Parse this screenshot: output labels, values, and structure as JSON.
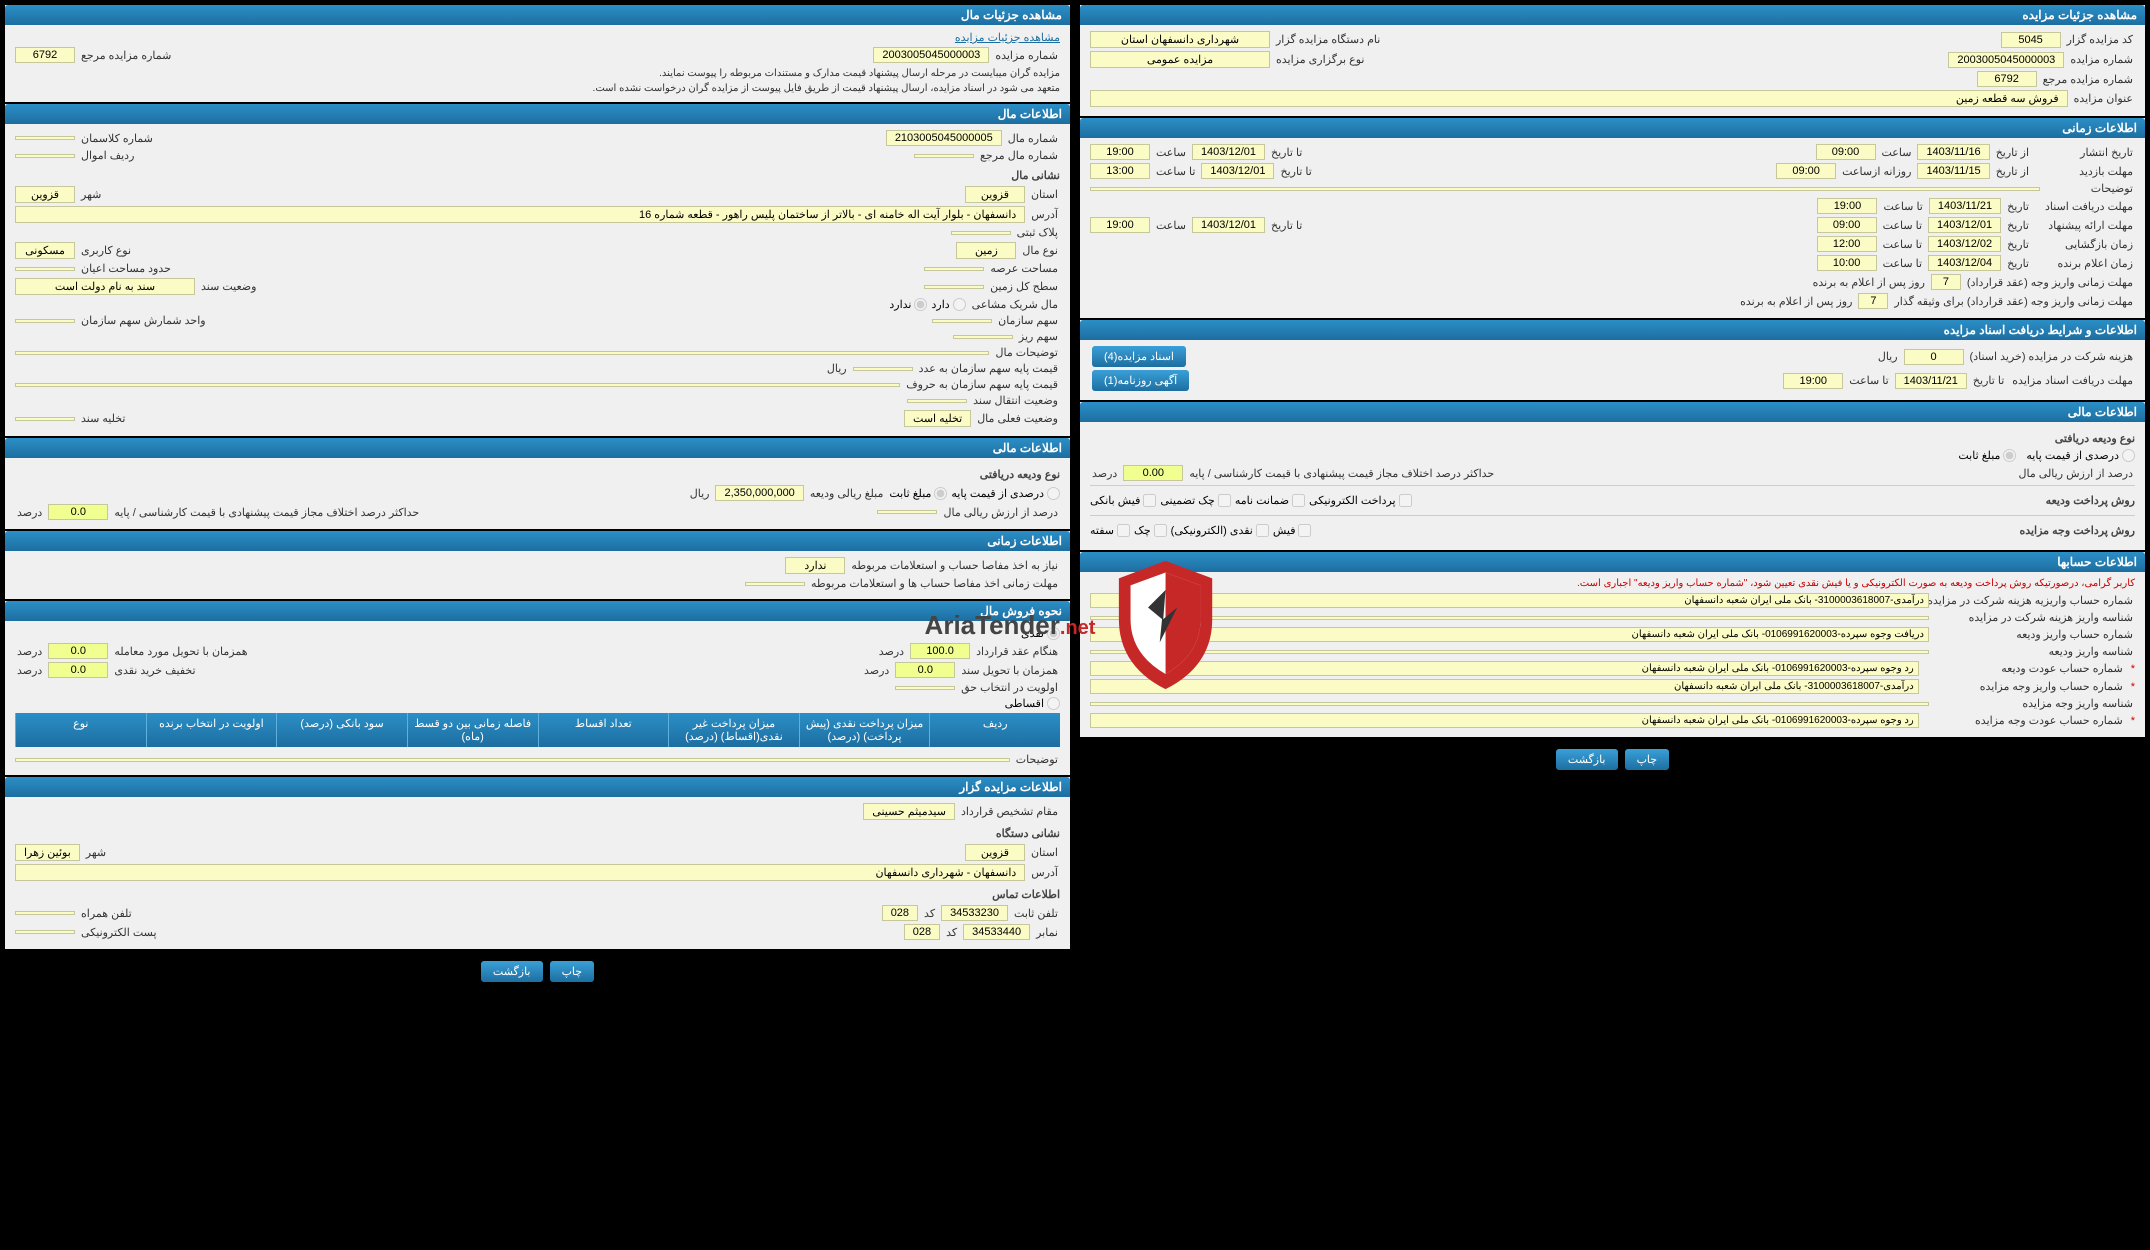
{
  "colors": {
    "header_bg": "#1d6ea0",
    "field_bg": "#fbfbc5",
    "page_bg": "#000000"
  },
  "right": {
    "p1": {
      "title": "مشاهده جزئیات مزایده",
      "fields": {
        "kod_gozar_lbl": "کد مزایده گزار",
        "kod_gozar": "5045",
        "nam_gozar_lbl": "نام دستگاه مزایده گزار",
        "nam_gozar": "شهرداری دانسفهان استان",
        "sh_mozayede_lbl": "شماره مزایده",
        "sh_mozayede": "2003005045000003",
        "no_bargozari_lbl": "نوع برگزاری مزایده",
        "no_bargozari": "مزایده عمومی",
        "sh_marja_lbl": "شماره مزایده مرجع",
        "sh_marja": "6792",
        "onvan_lbl": "عنوان مزایده",
        "onvan": "فروش سه قطعه زمین"
      }
    },
    "p2": {
      "title": "اطلاعات زمانی",
      "rows": {
        "r1_lbl": "تاریخ انتشار",
        "r1_from_lbl": "از تاریخ",
        "r1_from": "1403/11/16",
        "r1_s1_lbl": "ساعت",
        "r1_s1": "09:00",
        "r1_to_lbl": "تا تاریخ",
        "r1_to": "1403/12/01",
        "r1_s2_lbl": "ساعت",
        "r1_s2": "19:00",
        "r2_lbl": "مهلت بازدید",
        "r2_from_lbl": "از تاریخ",
        "r2_from": "1403/11/15",
        "r2_s1_lbl": "روزانه ازساعت",
        "r2_s1": "09:00",
        "r2_to_lbl": "تا تاریخ",
        "r2_to": "1403/12/01",
        "r2_s2_lbl": "تا ساعت",
        "r2_s2": "13:00",
        "tozihat_lbl": "توضیحات",
        "r3_lbl": "مهلت دریافت اسناد",
        "r3_t_lbl": "تاریخ",
        "r3_t": "1403/11/21",
        "r3_s_lbl": "تا ساعت",
        "r3_s": "19:00",
        "r4_lbl": "مهلت ارائه پیشنهاد",
        "r4_t_lbl": "تاریخ",
        "r4_t": "1403/12/01",
        "r4_s1_lbl": "تا ساعت",
        "r4_s1": "09:00",
        "r4_to_lbl": "تا تاریخ",
        "r4_to": "1403/12/01",
        "r4_s2_lbl": "ساعت",
        "r4_s2": "19:00",
        "r5_lbl": "زمان بازگشایی",
        "r5_t_lbl": "تاریخ",
        "r5_t": "1403/12/02",
        "r5_s_lbl": "تا ساعت",
        "r5_s": "12:00",
        "r6_lbl": "زمان اعلام برنده",
        "r6_t_lbl": "تاریخ",
        "r6_t": "1403/12/04",
        "r6_s_lbl": "تا ساعت",
        "r6_s": "10:00",
        "m1_lbl": "مهلت زمانی واریز وجه (عقد قرارداد)",
        "m1": "7",
        "m1_suf": "روز پس از اعلام به برنده",
        "m2_lbl": "مهلت زمانی واریز وجه (عقد قرارداد) برای وثیقه گذار",
        "m2": "7",
        "m2_suf": "روز پس از اعلام به برنده"
      }
    },
    "p3": {
      "title": "اطلاعات و شرایط دریافت اسناد مزایده",
      "f1_lbl": "هزینه شرکت در مزایده (خرید اسناد)",
      "f1": "0",
      "f1_suf": "ریال",
      "btn1": "اسناد مزایده(4)",
      "f2_lbl": "مهلت دریافت اسناد مزایده",
      "f2_to_lbl": "تا تاریخ",
      "f2_to": "1403/11/21",
      "f2_s_lbl": "تا ساعت",
      "f2_s": "19:00",
      "btn2": "آگهی روزنامه(1)"
    },
    "p4": {
      "title": "اطلاعات مالی",
      "sub1": "نوع ودیعه دریافتی",
      "o1": "درصدی از قیمت پایه",
      "o2": "مبلغ ثابت",
      "l1": "درصد از ارزش ریالی مال",
      "l2": "حداکثر درصد اختلاف مجاز قیمت پیشنهادی با قیمت کارشناسی / پایه",
      "l2_v": "0.00",
      "l2_suf": "درصد",
      "sub2": "روش پرداخت ودیعه",
      "c1": "پرداخت الکترونیکی",
      "c2": "ضمانت نامه",
      "c3": "چک تضمینی",
      "c4": "فیش بانکی",
      "sub3": "روش پرداخت وجه مزایده",
      "d1": "فیش",
      "d2": "نقدی (الکترونیکی)",
      "d3": "چک",
      "d4": "سفته"
    },
    "p5": {
      "title": "اطلاعات حسابها",
      "warn": "کاربر گرامی، درصورتیکه روش پرداخت ودیعه به صورت الکترونیکی و یا فیش نقدی تعیین شود، \"شماره حساب واریز ودیعه\" اجباری است.",
      "rows": [
        {
          "lbl": "شماره حساب واریزیه هزینه شرکت در مزایده",
          "val": "درآمدی-3100003618007- بانک ملی ایران شعبه دانسفهان",
          "star": false
        },
        {
          "lbl": "شناسه واریز هزینه شرکت در مزایده",
          "val": "",
          "star": false
        },
        {
          "lbl": "شماره حساب واریز ودیعه",
          "val": "دریافت وجوه سپرده-0106991620003- بانک ملی ایران شعبه دانسفهان",
          "star": false
        },
        {
          "lbl": "شناسه واریز ودیعه",
          "val": "",
          "star": false
        },
        {
          "lbl": "شماره حساب عودت ودیعه",
          "val": "رد وجوه سپرده-0106991620003- بانک ملی ایران شعبه دانسفهان",
          "star": true
        },
        {
          "lbl": "شماره حساب واریز وجه مزایده",
          "val": "درآمدی-3100003618007- بانک ملی ایران شعبه دانسفهان",
          "star": true
        },
        {
          "lbl": "شناسه واریز وجه مزایده",
          "val": "",
          "star": false
        },
        {
          "lbl": "شماره حساب عودت وجه مزایده",
          "val": "رد وجوه سپرده-0106991620003- بانک ملی ایران شعبه دانسفهان",
          "star": true
        }
      ]
    },
    "actions": {
      "print": "چاپ",
      "back": "بازگشت"
    }
  },
  "left": {
    "p1": {
      "title": "مشاهده جزئیات مال",
      "link": "مشاهده جزئیات مزایده",
      "sh_lbl": "شماره مزایده",
      "sh": "2003005045000003",
      "m_lbl": "شماره مزایده مرجع",
      "m": "6792",
      "n1": "مزایده گران میبایست در مرحله ارسال پیشنهاد قیمت مدارک و مستندات مربوطه را پیوست نمایند.",
      "n2": "متعهد می شود در اسناد مزایده، ارسال پیشنهاد قیمت از طریق فایل پیوست از مزایده گران درخواست نشده است."
    },
    "p2": {
      "title": "اطلاعات مال",
      "sh_lbl": "شماره مال",
      "sh": "2103005045000005",
      "kel_lbl": "شماره کلاسمان",
      "sh2_lbl": "شماره مال مرجع",
      "rad_lbl": "ردیف اموال",
      "sub": "نشانی مال",
      "ostan_lbl": "استان",
      "ostan": "قزوین",
      "shahr_lbl": "شهر",
      "shahr": "قزوین",
      "adr_lbl": "آدرس",
      "adr": "دانسفهان - بلوار آیت اله خامنه ای - بالاتر از ساختمان پلیس راهور - قطعه شماره 16",
      "pelak_lbl": "پلاک ثبتی",
      "no_mal_lbl": "نوع مال",
      "no_mal": "زمین",
      "no_kar_lbl": "نوع کاربری",
      "no_kar": "مسکونی",
      "mas_lbl": "مساحت عرصه",
      "hod_lbl": "حدود مساحت اعیان",
      "sath_lbl": "سطح کل زمین",
      "vaz_lbl": "وضعیت سند",
      "vaz": "سند به نام دولت است",
      "mash_lbl": "مال شریک مشاعی",
      "mash_o1": "دارد",
      "mash_o2": "ندارد",
      "sahm_lbl": "سهم سازمان",
      "vsh_lbl": "واحد شمارش سهم سازمان",
      "riz_lbl": "سهم ریز",
      "toz_lbl": "توضیحات مال",
      "q1_lbl": "قیمت پایه سهم سازمان به عدد",
      "rial": "ریال",
      "q2_lbl": "قیمت پایه سهم سازمان به حروف",
      "vazent_lbl": "وضعیت انتقال سند",
      "feli_lbl": "وضعیت فعلی مال",
      "feli": "تخلیه است",
      "takh_lbl": "تخلیه سند"
    },
    "p3": {
      "title": "اطلاعات مالی",
      "sub": "نوع ودیعه دریافتی",
      "o1": "درصدی از قیمت پایه",
      "o2": "مبلغ ثابت",
      "mbl_lbl": "مبلغ ریالی ودیعه",
      "mbl": "2,350,000,000",
      "rial": "ریال",
      "l1": "درصد از ارزش ریالی مال",
      "l2": "حداکثر درصد اختلاف مجاز قیمت پیشنهادی با قیمت کارشناسی / پایه",
      "l2v": "0.0",
      "l2s": "درصد"
    },
    "p4": {
      "title": "اطلاعات زمانی",
      "l1": "نیاز به اخذ مفاصا حساب و استعلامات مربوطه",
      "l1v": "ندارد",
      "l2": "مهلت زمانی اخذ مفاصا حساب ها و استعلامات مربوطه"
    },
    "p5": {
      "title": "نحوه فروش مال",
      "o1": "نقدی",
      "o2": "اقساطی",
      "l1": "هنگام عقد قرارداد",
      "l1v": "100.0",
      "l1s": "درصد",
      "l2": "همزمان با تحویل مورد معامله",
      "l2v": "0.0",
      "l2s": "درصد",
      "l3": "همزمان با تحویل سند",
      "l3v": "0.0",
      "l3s": "درصد",
      "l4": "تخفیف خرید نقدی",
      "l4v": "0.0",
      "l4s": "درصد",
      "l5": "اولویت در انتخاب حق",
      "th": [
        "ردیف",
        "میزان پرداخت نقدی (پیش پرداخت) (درصد)",
        "میزان پرداخت غیر نقدی(اقساط) (درصد)",
        "تعداد اقساط",
        "فاصله زمانی بین دو قسط (ماه)",
        "سود بانکی (درصد)",
        "اولویت در انتخاب برنده",
        "نوع"
      ],
      "toz_lbl": "توضیحات"
    },
    "p6": {
      "title": "اطلاعات مزایده گزار",
      "l1": "مقام تشخیص قرارداد",
      "l1v": "سیدمیثم حسینی",
      "sub1": "نشانی دستگاه",
      "ostan_lbl": "استان",
      "ostan": "قزوین",
      "shahr_lbl": "شهر",
      "shahr": "بوئین زهرا",
      "adr_lbl": "آدرس",
      "adr": "دانسفهان - شهرداری دانسفهان",
      "sub2": "اطلاعات تماس",
      "tel_lbl": "تلفن ثابت",
      "tel": "34533230",
      "kod_lbl": "کد",
      "kod": "028",
      "ham_lbl": "تلفن همراه",
      "nam_lbl": "نمابر",
      "nam": "34533440",
      "kod2_lbl": "کد",
      "kod2": "028",
      "post_lbl": "پست الکترونیکی"
    },
    "actions": {
      "print": "چاپ",
      "back": "بازگشت"
    }
  },
  "logo": {
    "brand": "AriaTender",
    "suffix": ".net"
  }
}
